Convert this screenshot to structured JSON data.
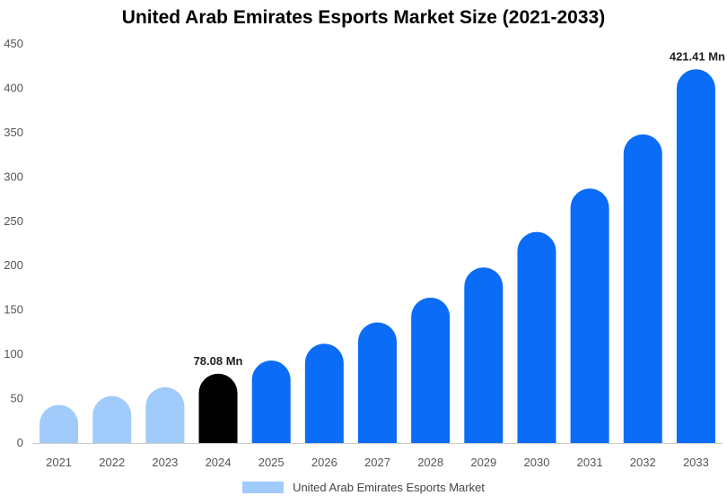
{
  "chart_data": {
    "type": "bar",
    "title": "United Arab Emirates Esports Market Size (2021-2033)",
    "xlabel": "",
    "ylabel": "",
    "ylim": [
      0,
      450
    ],
    "yticks": [
      0,
      50,
      100,
      150,
      200,
      250,
      300,
      350,
      400,
      450
    ],
    "grid": false,
    "legend_position": "bottom",
    "categories": [
      "2021",
      "2022",
      "2023",
      "2024",
      "2025",
      "2026",
      "2027",
      "2028",
      "2029",
      "2030",
      "2031",
      "2032",
      "2033"
    ],
    "series": [
      {
        "name": "United Arab Emirates Esports Market",
        "values": [
          43,
          53,
          63,
          78.08,
          93,
          112,
          136,
          164,
          198,
          238,
          287,
          348,
          421.41
        ]
      }
    ],
    "bar_colors": [
      "#a0cbfb",
      "#a0cbfb",
      "#a0cbfb",
      "#000000",
      "#0a6cf7",
      "#0a6cf7",
      "#0a6cf7",
      "#0a6cf7",
      "#0a6cf7",
      "#0a6cf7",
      "#0a6cf7",
      "#0a6cf7",
      "#0a6cf7"
    ],
    "data_labels": [
      {
        "index": 3,
        "text": "78.08 Mn"
      },
      {
        "index": 12,
        "text": "421.41 Mn"
      }
    ]
  }
}
